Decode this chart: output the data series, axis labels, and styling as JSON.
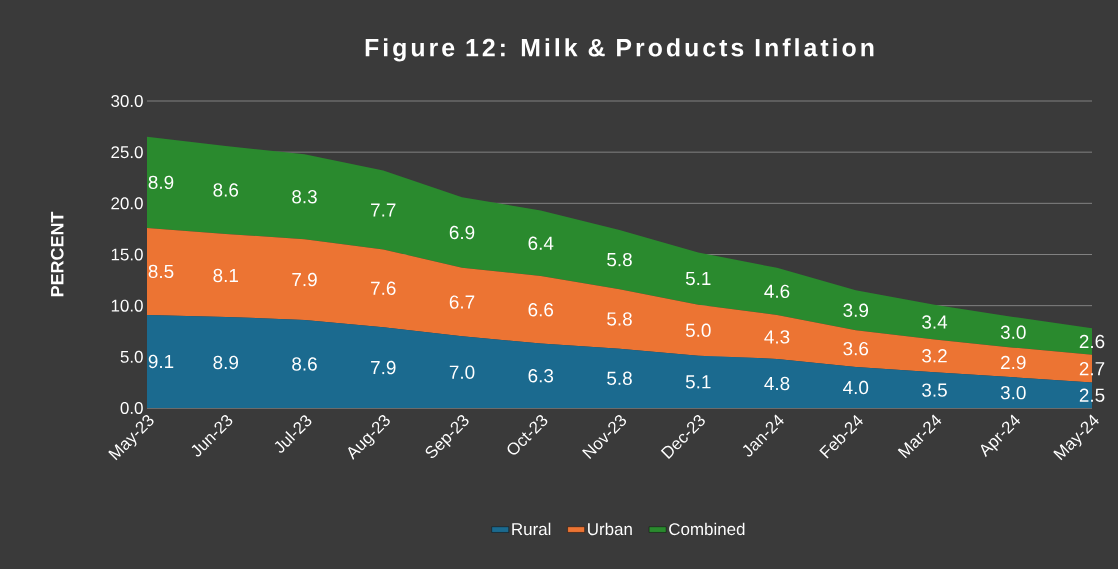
{
  "chart_data": {
    "type": "area",
    "stacked": true,
    "title": "Figure  12: Milk & Products Inflation",
    "ylabel": "PERCENT",
    "categories": [
      "May-23",
      "Jun-23",
      "Jul-23",
      "Aug-23",
      "Sep-23",
      "Oct-23",
      "Nov-23",
      "Dec-23",
      "Jan-24",
      "Feb-24",
      "Mar-24",
      "Apr-24",
      "May-24"
    ],
    "series": [
      {
        "name": "Rural",
        "color": "#1b6a8f",
        "values": [
          9.1,
          8.9,
          8.6,
          7.9,
          7.0,
          6.3,
          5.8,
          5.1,
          4.8,
          4.0,
          3.5,
          3.0,
          2.5
        ],
        "value_labels": [
          "9.1",
          "8.9",
          "8.6",
          "7.9",
          "7.0",
          "6.3",
          "5.8",
          "5.1",
          "4.8",
          "4.0",
          "3.5",
          "3.0",
          "2.5"
        ]
      },
      {
        "name": "Urban",
        "color": "#ec7433",
        "values": [
          8.5,
          8.1,
          7.9,
          7.6,
          6.7,
          6.6,
          5.8,
          5.0,
          4.3,
          3.6,
          3.2,
          2.9,
          2.7
        ],
        "value_labels": [
          "8.5",
          "8.1",
          "7.9",
          "7.6",
          "6.7",
          "6.6",
          "5.8",
          "5.0",
          "4.3",
          "3.6",
          "3.2",
          "2.9",
          "2.7"
        ]
      },
      {
        "name": "Combined",
        "color": "#2a8a2e",
        "values": [
          8.9,
          8.6,
          8.3,
          7.7,
          6.9,
          6.4,
          5.8,
          5.1,
          4.6,
          3.9,
          3.4,
          3.0,
          2.6
        ],
        "value_labels": [
          "8.9",
          "8.6",
          "8.3",
          "7.7",
          "6.9",
          "6.4",
          "5.8",
          "5.1",
          "4.6",
          "3.9",
          "3.4",
          "3.0",
          "2.6"
        ]
      }
    ],
    "ylim": [
      0,
      30
    ],
    "yticks": [
      {
        "value": 0,
        "label": "0.0"
      },
      {
        "value": 5,
        "label": "5.0"
      },
      {
        "value": 10,
        "label": "10.0"
      },
      {
        "value": 15,
        "label": "15.0"
      },
      {
        "value": 20,
        "label": "20.0"
      },
      {
        "value": 25,
        "label": "25.0"
      },
      {
        "value": 30,
        "label": "30.0"
      }
    ],
    "grid": "y",
    "legend": "bottom"
  }
}
